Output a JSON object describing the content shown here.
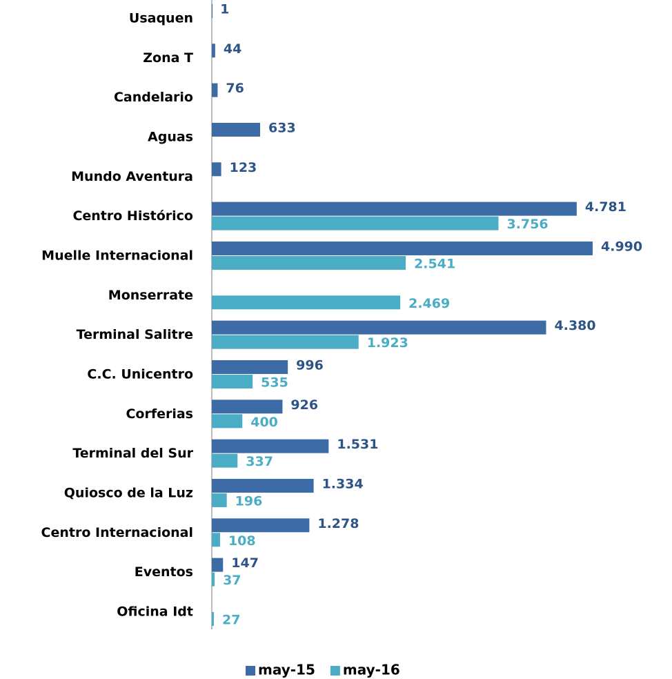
{
  "chart_data": {
    "type": "bar",
    "orientation": "horizontal",
    "categories": [
      "Usaquen",
      "Zona T",
      "Candelario",
      "Aguas",
      "Mundo Aventura",
      "Centro Histórico",
      "Muelle Internacional",
      "Monserrate",
      "Terminal Salitre",
      "C.C. Unicentro",
      "Corferias",
      "Terminal del Sur",
      "Quiosco de la Luz",
      "Centro Internacional",
      "Eventos",
      "Oficina  Idt"
    ],
    "series": [
      {
        "name": "may-15",
        "color": "#3d6ba6",
        "label_color": "#2e5386",
        "values": [
          1,
          44,
          76,
          633,
          123,
          4781,
          4990,
          null,
          4380,
          996,
          926,
          1531,
          1334,
          1278,
          147,
          null
        ],
        "value_labels": [
          "1",
          "44",
          "76",
          "633",
          "123",
          "4.781",
          "4.990",
          null,
          "4.380",
          "996",
          "926",
          "1.531",
          "1.334",
          "1.278",
          "147",
          null
        ]
      },
      {
        "name": "may-16",
        "color": "#4bacc6",
        "label_color": "#4bacc6",
        "values": [
          null,
          null,
          null,
          null,
          null,
          3756,
          2541,
          2469,
          1923,
          535,
          400,
          337,
          196,
          108,
          37,
          27
        ],
        "value_labels": [
          null,
          null,
          null,
          null,
          null,
          "3.756",
          "2.541",
          "2.469",
          "1.923",
          "535",
          "400",
          "337",
          "196",
          "108",
          "37",
          "27"
        ]
      }
    ],
    "legend": "bottom"
  }
}
